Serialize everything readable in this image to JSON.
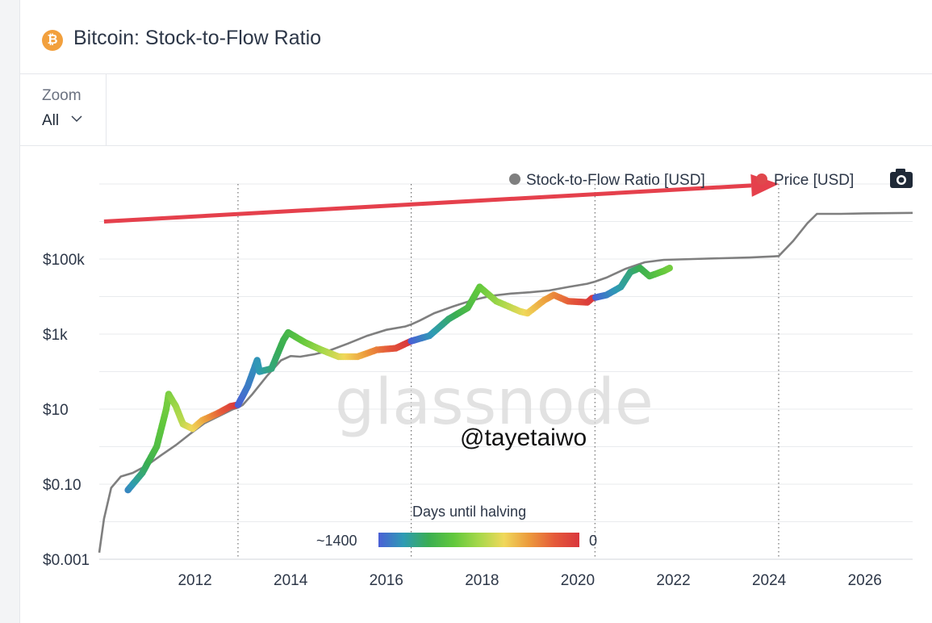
{
  "header": {
    "icon": "bitcoin-icon",
    "icon_glyph": "₿",
    "title": "Bitcoin: Stock-to-Flow Ratio"
  },
  "toolbar": {
    "zoom_label": "Zoom",
    "zoom_value": "All"
  },
  "watermark": "glassnode",
  "handle": "@tayetaiwo",
  "camera_icon": "camera-icon",
  "colors": {
    "s2f": "#7f7f7f",
    "price_legend": "#e0474c",
    "arrow": "#e5404c",
    "gradient": [
      "#4a5fd6",
      "#2e9bb4",
      "#3aae52",
      "#62c83c",
      "#a6d84a",
      "#f0d85a",
      "#ec9a3c",
      "#e55a3a",
      "#d9363c"
    ]
  },
  "chart_data": {
    "type": "line",
    "y_scale": "log",
    "ylim": [
      0.001,
      1000000
    ],
    "xlim": [
      2010.0,
      2027.0
    ],
    "y_ticks": [
      {
        "value": 0.001,
        "label": "$0.001"
      },
      {
        "value": 0.1,
        "label": "$0.10"
      },
      {
        "value": 10,
        "label": "$10"
      },
      {
        "value": 1000,
        "label": "$1k"
      },
      {
        "value": 100000,
        "label": "$100k"
      }
    ],
    "y_gridlines": [
      0.001,
      0.01,
      0.1,
      1,
      10,
      100,
      1000,
      10000,
      100000,
      1000000,
      10000000
    ],
    "x_ticks": [
      {
        "value": 2012,
        "label": "2012"
      },
      {
        "value": 2014,
        "label": "2014"
      },
      {
        "value": 2016,
        "label": "2016"
      },
      {
        "value": 2018,
        "label": "2018"
      },
      {
        "value": 2020,
        "label": "2020"
      },
      {
        "value": 2022,
        "label": "2022"
      },
      {
        "value": 2024,
        "label": "2024"
      },
      {
        "value": 2026,
        "label": "2026"
      }
    ],
    "halvings": [
      2012.9,
      2016.52,
      2020.36,
      2024.2
    ],
    "legend": [
      {
        "name": "Stock-to-Flow Ratio [USD]",
        "color": "#7f7f7f"
      },
      {
        "name": "Price [USD]",
        "color": "#e0474c"
      }
    ],
    "legend_position": "top-right",
    "colorbar": {
      "title": "Days until halving",
      "min_label": "~1400",
      "max_label": "0"
    },
    "series": [
      {
        "name": "Stock-to-Flow Ratio [USD]",
        "x": [
          2010.0,
          2010.1,
          2010.25,
          2010.45,
          2010.7,
          2011.0,
          2011.3,
          2011.6,
          2011.9,
          2012.2,
          2012.5,
          2012.8,
          2012.9,
          2013.0,
          2013.2,
          2013.5,
          2013.8,
          2014.0,
          2014.2,
          2014.5,
          2014.8,
          2015.2,
          2015.6,
          2016.0,
          2016.4,
          2016.52,
          2016.7,
          2017.0,
          2017.4,
          2017.8,
          2018.2,
          2018.6,
          2019.0,
          2019.4,
          2019.8,
          2020.2,
          2020.36,
          2020.6,
          2021.0,
          2021.4,
          2021.8,
          2022.4,
          2023.0,
          2023.6,
          2024.1,
          2024.2,
          2024.5,
          2024.8,
          2025.0,
          2025.5,
          2026.0,
          2027.0
        ],
        "values": [
          0.0015,
          0.012,
          0.08,
          0.16,
          0.2,
          0.32,
          0.6,
          1.1,
          2.2,
          4.2,
          6.5,
          10,
          11,
          13,
          25,
          75,
          200,
          260,
          250,
          290,
          360,
          560,
          900,
          1300,
          1600,
          1800,
          2300,
          3600,
          5500,
          8000,
          10500,
          12000,
          13000,
          14500,
          18000,
          22000,
          25000,
          32000,
          55000,
          82000,
          95000,
          100000,
          105000,
          110000,
          118000,
          120000,
          300000,
          900000,
          1600000,
          1600000,
          1650000,
          1700000
        ]
      },
      {
        "name": "Price [USD]",
        "x": [
          2010.6,
          2010.9,
          2011.2,
          2011.4,
          2011.45,
          2011.6,
          2011.75,
          2011.95,
          2012.15,
          2012.5,
          2012.75,
          2012.9,
          2013.1,
          2013.3,
          2013.35,
          2013.6,
          2013.85,
          2013.95,
          2014.3,
          2014.6,
          2015.0,
          2015.4,
          2015.8,
          2016.2,
          2016.52,
          2016.9,
          2017.3,
          2017.7,
          2017.95,
          2018.3,
          2018.8,
          2018.95,
          2019.3,
          2019.5,
          2019.8,
          2020.2,
          2020.3,
          2020.6,
          2020.9,
          2021.1,
          2021.3,
          2021.5,
          2021.8,
          2021.95
        ],
        "values": [
          0.07,
          0.2,
          1.0,
          10,
          25,
          12,
          4,
          3,
          5,
          8,
          12,
          13,
          40,
          200,
          100,
          120,
          700,
          1100,
          600,
          400,
          250,
          250,
          380,
          420,
          650,
          900,
          2500,
          5000,
          18000,
          7500,
          4000,
          3600,
          8000,
          11000,
          7500,
          7000,
          9000,
          11000,
          18000,
          45000,
          58000,
          35000,
          48000,
          60000
        ]
      }
    ],
    "annotations": [
      {
        "type": "arrow",
        "from": [
          2010.1,
          1000000
        ],
        "to": [
          2024.2,
          10000000
        ]
      }
    ]
  }
}
